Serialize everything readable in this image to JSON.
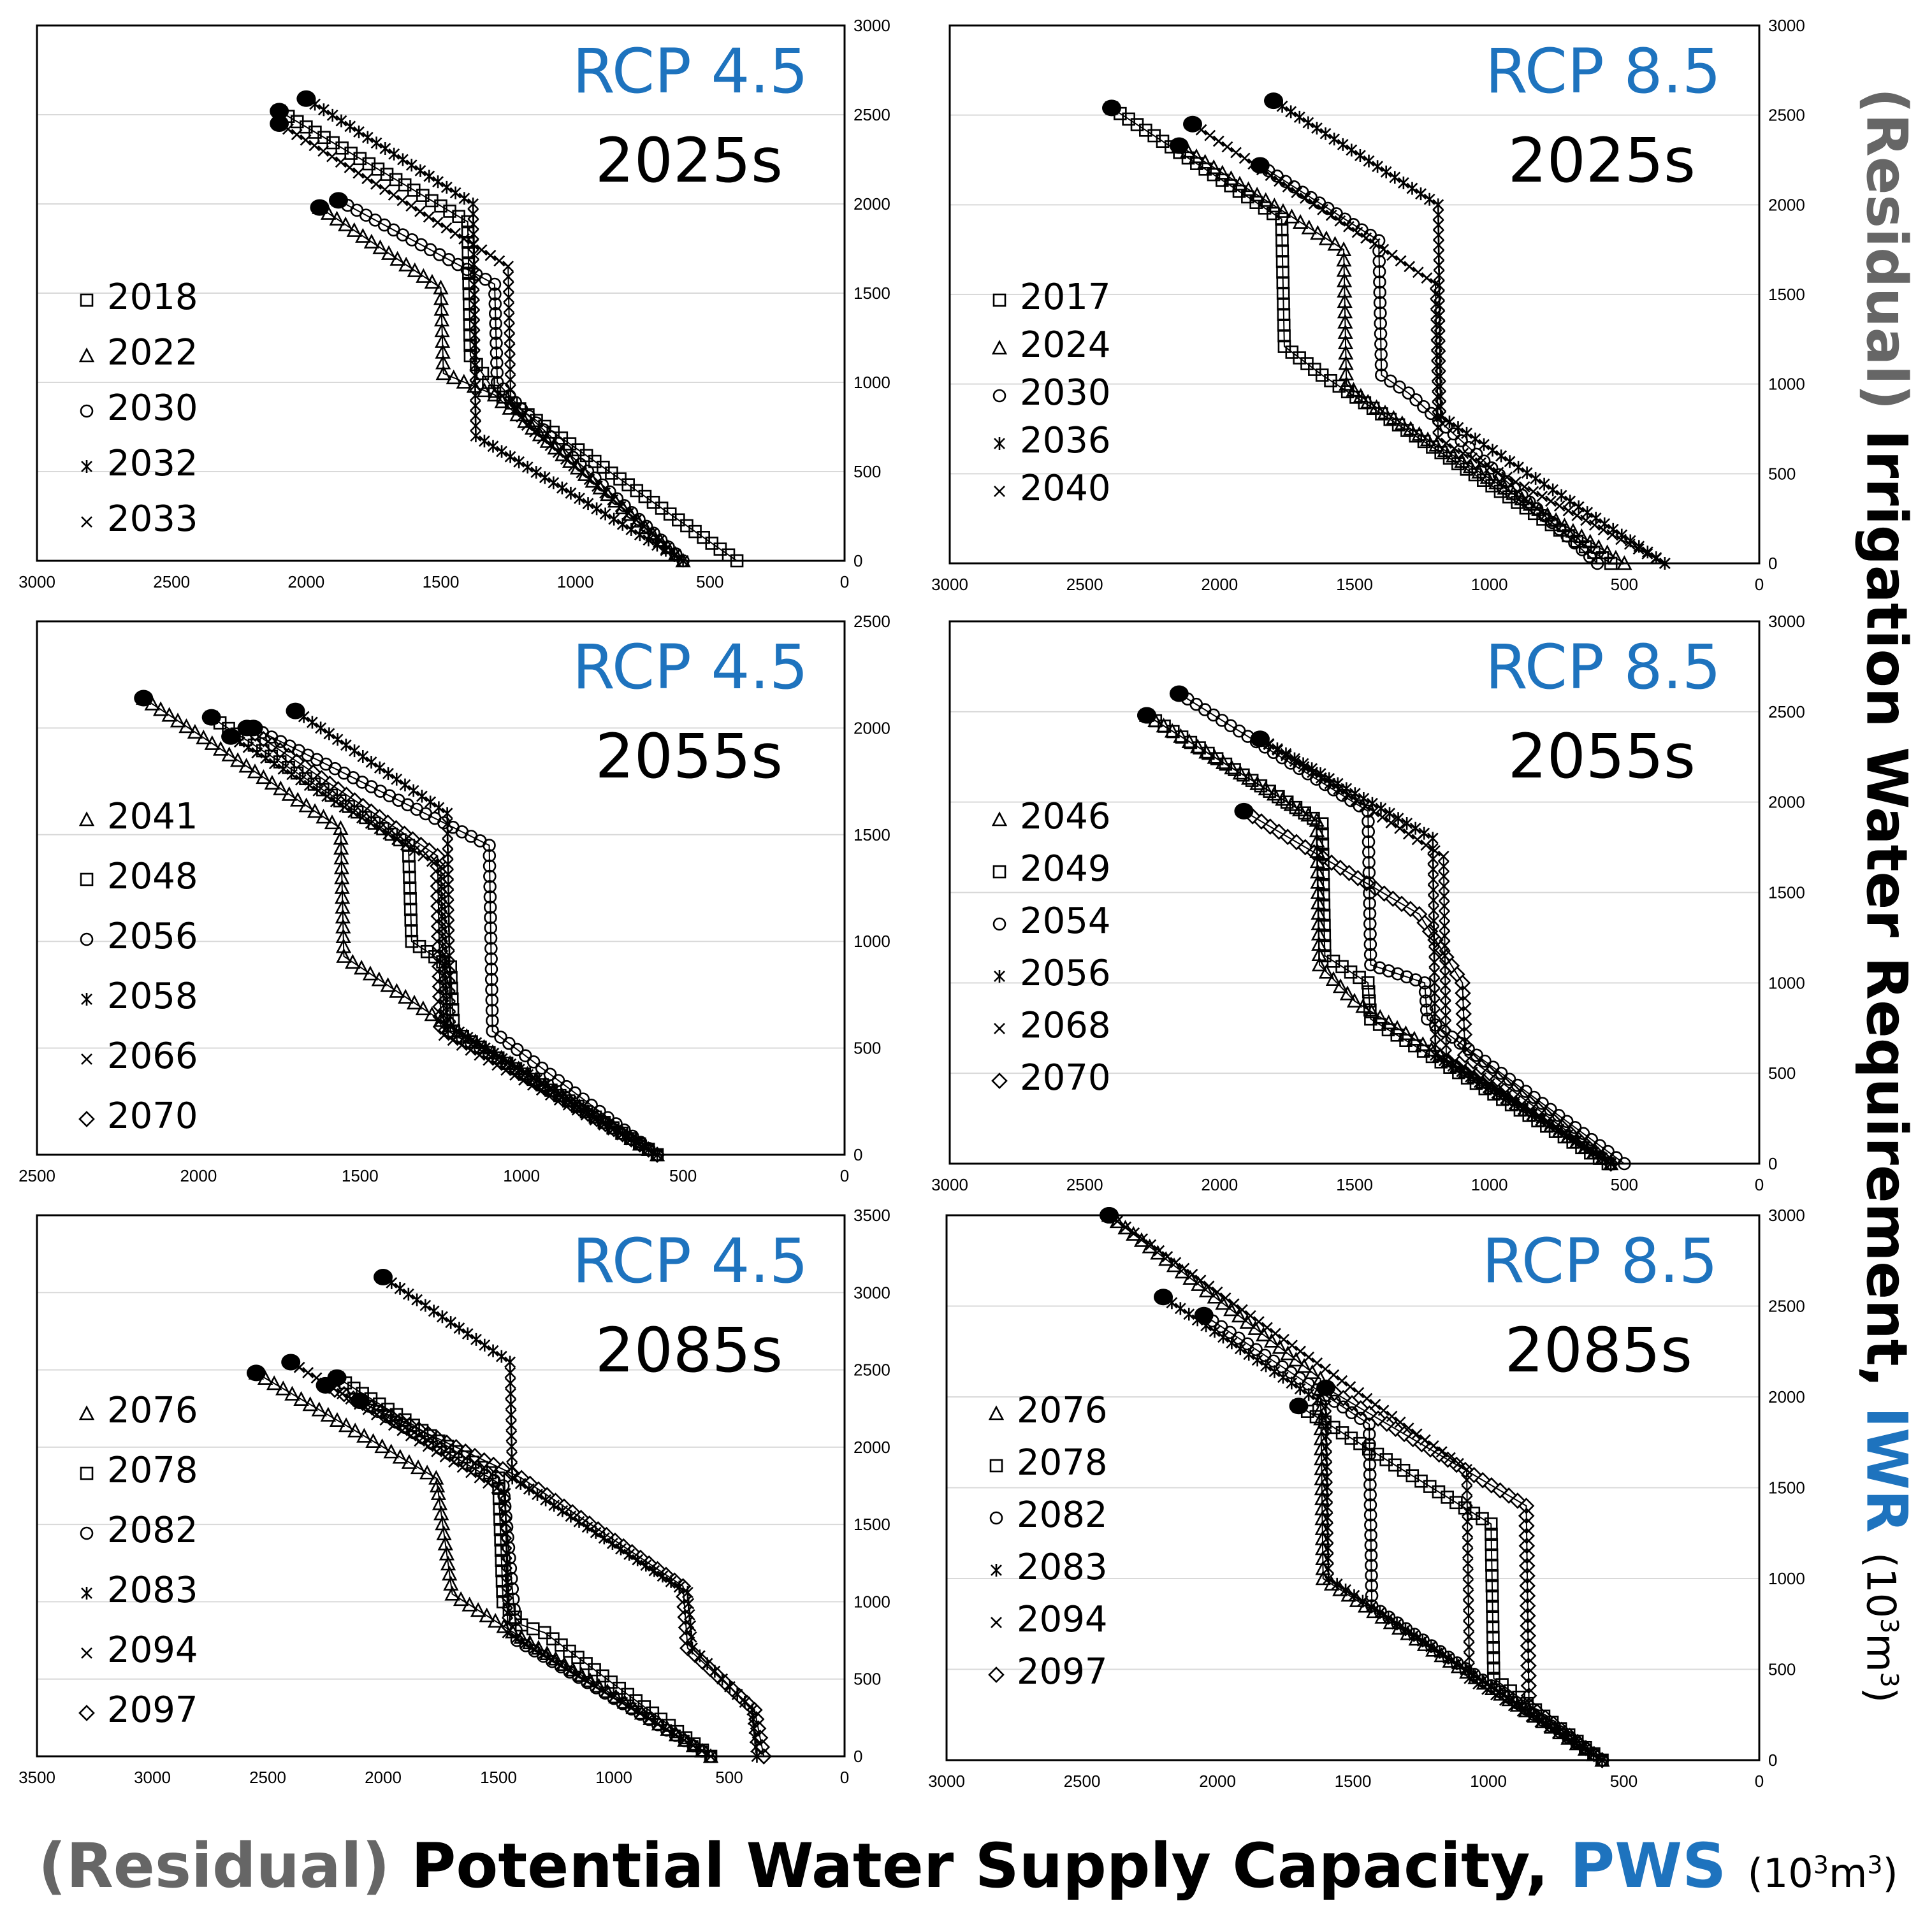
{
  "labels": {
    "y_residual": "(Residual)",
    "y_main": "Irrigation Water Requirement,",
    "y_abbr": "IWR",
    "unit_base": "(10",
    "unit_exp1": "3",
    "unit_mid": "m",
    "unit_exp2": "3",
    "unit_close": ")",
    "x_residual": "(Residual)",
    "x_main": "Potential Water Supply Capacity,",
    "x_abbr": "PWS"
  },
  "colors": {
    "scenario": "#1e73be",
    "grid": "#d9d9d9",
    "axis": "#000000",
    "residual": "#666666"
  },
  "chart_data": [
    {
      "type": "line",
      "scenario": "RCP 4.5",
      "period": "2025s",
      "xlim": [
        3000,
        0
      ],
      "xticks": [
        3000,
        2500,
        2000,
        1500,
        1000,
        500,
        0
      ],
      "ylim": [
        0,
        3000
      ],
      "yticks": [
        0,
        500,
        1000,
        1500,
        2000,
        2500,
        3000
      ],
      "series": [
        {
          "name": "2018",
          "marker": "square",
          "points": [
            [
              2100,
              2520
            ],
            [
              1400,
              1900
            ],
            [
              1390,
              1150
            ],
            [
              1300,
              950
            ],
            [
              400,
              0
            ]
          ]
        },
        {
          "name": "2022",
          "marker": "triangle",
          "points": [
            [
              1950,
              1980
            ],
            [
              1500,
              1530
            ],
            [
              1490,
              1050
            ],
            [
              1300,
              930
            ],
            [
              600,
              0
            ]
          ]
        },
        {
          "name": "2030",
          "marker": "circle",
          "points": [
            [
              1880,
              2020
            ],
            [
              1300,
              1550
            ],
            [
              1290,
              1000
            ],
            [
              1200,
              850
            ],
            [
              600,
              0
            ]
          ]
        },
        {
          "name": "2032",
          "marker": "asterisk",
          "points": [
            [
              2000,
              2590
            ],
            [
              1380,
              2000
            ],
            [
              1370,
              700
            ],
            [
              600,
              0
            ]
          ]
        },
        {
          "name": "2033",
          "marker": "x",
          "points": [
            [
              2100,
              2450
            ],
            [
              1250,
              1650
            ],
            [
              1240,
              900
            ],
            [
              1180,
              760
            ],
            [
              600,
              0
            ]
          ]
        }
      ]
    },
    {
      "type": "line",
      "scenario": "RCP 8.5",
      "period": "2025s",
      "xlim": [
        3000,
        0
      ],
      "xticks": [
        3000,
        2500,
        2000,
        1500,
        1000,
        500,
        0
      ],
      "ylim": [
        0,
        3000
      ],
      "yticks": [
        0,
        500,
        1000,
        1500,
        2000,
        2500,
        3000
      ],
      "series": [
        {
          "name": "2017",
          "marker": "square",
          "points": [
            [
              2400,
              2540
            ],
            [
              1770,
              1920
            ],
            [
              1760,
              1210
            ],
            [
              1620,
              1050
            ],
            [
              550,
              0
            ]
          ]
        },
        {
          "name": "2024",
          "marker": "triangle",
          "points": [
            [
              2150,
              2330
            ],
            [
              1540,
              1750
            ],
            [
              1530,
              1000
            ],
            [
              1450,
              900
            ],
            [
              500,
              0
            ]
          ]
        },
        {
          "name": "2030",
          "marker": "circle",
          "points": [
            [
              1850,
              2220
            ],
            [
              1410,
              1800
            ],
            [
              1400,
              1050
            ],
            [
              1300,
              950
            ],
            [
              600,
              0
            ]
          ]
        },
        {
          "name": "2036",
          "marker": "asterisk",
          "points": [
            [
              1800,
              2580
            ],
            [
              1190,
              2000
            ],
            [
              1180,
              820
            ],
            [
              350,
              0
            ]
          ]
        },
        {
          "name": "2040",
          "marker": "x",
          "points": [
            [
              2100,
              2450
            ],
            [
              1200,
              1560
            ],
            [
              1190,
              700
            ],
            [
              1130,
              640
            ],
            [
              350,
              0
            ]
          ]
        }
      ]
    },
    {
      "type": "line",
      "scenario": "RCP 4.5",
      "period": "2055s",
      "xlim": [
        2500,
        0
      ],
      "xticks": [
        2500,
        2000,
        1500,
        1000,
        500,
        0
      ],
      "ylim": [
        0,
        2500
      ],
      "yticks": [
        0,
        500,
        1000,
        1500,
        2000,
        2500
      ],
      "series": [
        {
          "name": "2041",
          "marker": "triangle",
          "points": [
            [
              2170,
              2140
            ],
            [
              1560,
              1530
            ],
            [
              1550,
              930
            ],
            [
              1250,
              630
            ],
            [
              580,
              0
            ]
          ]
        },
        {
          "name": "2048",
          "marker": "square",
          "points": [
            [
              1960,
              2050
            ],
            [
              1350,
              1450
            ],
            [
              1340,
              1000
            ],
            [
              1220,
              880
            ],
            [
              1210,
              580
            ],
            [
              580,
              0
            ]
          ]
        },
        {
          "name": "2056",
          "marker": "circle",
          "points": [
            [
              1830,
              2000
            ],
            [
              1100,
              1450
            ],
            [
              1090,
              580
            ],
            [
              580,
              0
            ]
          ]
        },
        {
          "name": "2058",
          "marker": "asterisk",
          "points": [
            [
              1700,
              2080
            ],
            [
              1230,
              1600
            ],
            [
              1220,
              600
            ],
            [
              580,
              0
            ]
          ]
        },
        {
          "name": "2066",
          "marker": "x",
          "points": [
            [
              1900,
              1960
            ],
            [
              1250,
              1350
            ],
            [
              1240,
              560
            ],
            [
              580,
              0
            ]
          ]
        },
        {
          "name": "2070",
          "marker": "diamond",
          "points": [
            [
              1850,
              2000
            ],
            [
              1260,
              1400
            ],
            [
              1250,
              600
            ],
            [
              580,
              0
            ]
          ]
        }
      ]
    },
    {
      "type": "line",
      "scenario": "RCP 8.5",
      "period": "2055s",
      "xlim": [
        3000,
        0
      ],
      "xticks": [
        3000,
        2500,
        2000,
        1500,
        1000,
        500,
        0
      ],
      "ylim": [
        0,
        3000
      ],
      "yticks": [
        0,
        500,
        1000,
        1500,
        2000,
        2500,
        3000
      ],
      "series": [
        {
          "name": "2046",
          "marker": "triangle",
          "points": [
            [
              2270,
              2480
            ],
            [
              1640,
              1900
            ],
            [
              1630,
              1100
            ],
            [
              1500,
              900
            ],
            [
              550,
              0
            ]
          ]
        },
        {
          "name": "2049",
          "marker": "square",
          "points": [
            [
              2270,
              2480
            ],
            [
              1620,
              1880
            ],
            [
              1610,
              1150
            ],
            [
              1450,
              1000
            ],
            [
              1440,
              800
            ],
            [
              560,
              0
            ]
          ]
        },
        {
          "name": "2054",
          "marker": "circle",
          "points": [
            [
              2150,
              2600
            ],
            [
              1450,
              1950
            ],
            [
              1440,
              1100
            ],
            [
              1240,
              1000
            ],
            [
              1230,
              800
            ],
            [
              500,
              0
            ]
          ]
        },
        {
          "name": "2056",
          "marker": "asterisk",
          "points": [
            [
              1850,
              2350
            ],
            [
              1210,
              1800
            ],
            [
              1200,
              600
            ],
            [
              550,
              0
            ]
          ]
        },
        {
          "name": "2068",
          "marker": "x",
          "points": [
            [
              1850,
              2350
            ],
            [
              1170,
              1700
            ],
            [
              1160,
              600
            ],
            [
              550,
              0
            ]
          ]
        },
        {
          "name": "2070",
          "marker": "diamond",
          "points": [
            [
              1910,
              1950
            ],
            [
              1260,
              1380
            ],
            [
              1100,
              1000
            ],
            [
              1090,
              600
            ],
            [
              550,
              0
            ]
          ]
        }
      ]
    },
    {
      "type": "line",
      "scenario": "RCP 4.5",
      "period": "2085s",
      "xlim": [
        3500,
        0
      ],
      "xticks": [
        3500,
        3000,
        2500,
        2000,
        1500,
        1000,
        500,
        0
      ],
      "ylim": [
        0,
        3500
      ],
      "yticks": [
        0,
        500,
        1000,
        1500,
        2000,
        2500,
        3000,
        3500
      ],
      "series": [
        {
          "name": "2076",
          "marker": "triangle",
          "points": [
            [
              2550,
              2480
            ],
            [
              1770,
              1800
            ],
            [
              1760,
              1700
            ],
            [
              1700,
              1050
            ],
            [
              580,
              0
            ]
          ]
        },
        {
          "name": "2078",
          "marker": "square",
          "points": [
            [
              2200,
              2450
            ],
            [
              1500,
              1800
            ],
            [
              1480,
              1000
            ],
            [
              1400,
              850
            ],
            [
              1300,
              800
            ],
            [
              580,
              0
            ]
          ]
        },
        {
          "name": "2082",
          "marker": "circle",
          "points": [
            [
              2100,
              2300
            ],
            [
              1480,
              1750
            ],
            [
              1420,
              750
            ],
            [
              580,
              0
            ]
          ]
        },
        {
          "name": "2083",
          "marker": "asterisk",
          "points": [
            [
              2000,
              3100
            ],
            [
              1450,
              2550
            ],
            [
              1440,
              1800
            ],
            [
              680,
              1060
            ],
            [
              660,
              700
            ],
            [
              400,
              300
            ],
            [
              380,
              0
            ]
          ]
        },
        {
          "name": "2094",
          "marker": "x",
          "points": [
            [
              2400,
              2550
            ],
            [
              1470,
              1700
            ],
            [
              1460,
              800
            ],
            [
              580,
              0
            ]
          ]
        },
        {
          "name": "2097",
          "marker": "diamond",
          "points": [
            [
              2250,
              2400
            ],
            [
              1400,
              1800
            ],
            [
              700,
              1100
            ],
            [
              680,
              700
            ],
            [
              390,
              300
            ],
            [
              350,
              0
            ]
          ]
        }
      ]
    },
    {
      "type": "line",
      "scenario": "RCP 8.5",
      "period": "2085s",
      "xlim": [
        3000,
        0
      ],
      "xticks": [
        3000,
        2500,
        2000,
        1500,
        1000,
        500,
        0
      ],
      "ylim": [
        0,
        3000
      ],
      "yticks": [
        0,
        500,
        1000,
        1500,
        2000,
        2500,
        3000
      ],
      "series": [
        {
          "name": "2076",
          "marker": "triangle",
          "points": [
            [
              2400,
              3000
            ],
            [
              1620,
              2100
            ],
            [
              1610,
              1000
            ],
            [
              580,
              0
            ]
          ]
        },
        {
          "name": "2078",
          "marker": "square",
          "points": [
            [
              1700,
              1950
            ],
            [
              990,
              1300
            ],
            [
              980,
              450
            ],
            [
              580,
              0
            ]
          ]
        },
        {
          "name": "2082",
          "marker": "circle",
          "points": [
            [
              2050,
              2450
            ],
            [
              1440,
              1850
            ],
            [
              1430,
              850
            ],
            [
              580,
              0
            ]
          ]
        },
        {
          "name": "2083",
          "marker": "asterisk",
          "points": [
            [
              2200,
              2550
            ],
            [
              1600,
              1950
            ],
            [
              1590,
              1000
            ],
            [
              580,
              0
            ]
          ]
        },
        {
          "name": "2094",
          "marker": "x",
          "points": [
            [
              2400,
              3000
            ],
            [
              1080,
              1600
            ],
            [
              1070,
              450
            ],
            [
              580,
              0
            ]
          ]
        },
        {
          "name": "2097",
          "marker": "diamond",
          "points": [
            [
              1600,
              2050
            ],
            [
              860,
              1400
            ],
            [
              850,
              300
            ],
            [
              580,
              0
            ]
          ]
        }
      ]
    }
  ]
}
